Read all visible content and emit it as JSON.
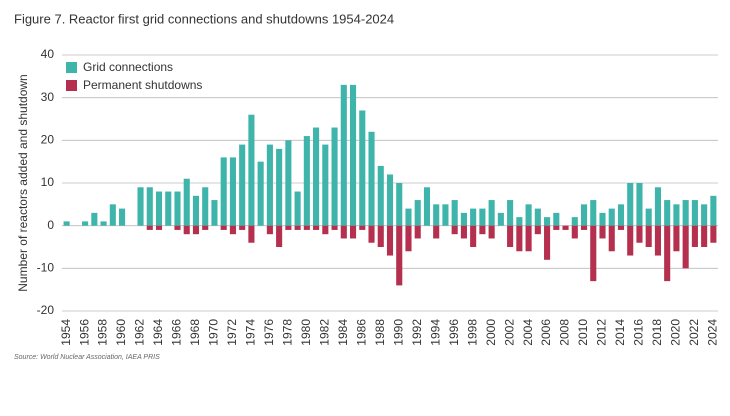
{
  "chart_data": {
    "type": "bar",
    "title": "Figure 7. Reactor first grid connections and shutdowns 1954-2024",
    "y_label": "Number of reactors added and shutdown",
    "source": "Source: World Nuclear Association, IAEA PRIS",
    "categories": [
      "1954",
      null,
      "1956",
      null,
      "1958",
      null,
      "1960",
      null,
      "1962",
      null,
      "1964",
      null,
      "1966",
      null,
      "1968",
      null,
      "1970",
      null,
      "1972",
      null,
      "1974",
      null,
      "1976",
      null,
      "1978",
      null,
      "1980",
      null,
      "1982",
      null,
      "1984",
      null,
      "1986",
      null,
      "1988",
      null,
      "1990",
      null,
      "1992",
      null,
      "1994",
      null,
      "1996",
      null,
      "1998",
      null,
      "2000",
      null,
      "2002",
      null,
      "2004",
      null,
      "2006",
      null,
      "2008",
      null,
      "2010",
      null,
      "2012",
      null,
      "2014",
      null,
      "2016",
      null,
      "2018",
      null,
      "2020",
      null,
      "2022",
      null,
      "2024"
    ],
    "series": [
      {
        "name": "Grid connections",
        "color": "#3fb4ab",
        "values": [
          1,
          0,
          1,
          3,
          1,
          5,
          4,
          0,
          9,
          9,
          8,
          8,
          8,
          11,
          7,
          9,
          6,
          16,
          16,
          19,
          26,
          15,
          19,
          18,
          20,
          8,
          21,
          23,
          19,
          23,
          33,
          33,
          27,
          22,
          14,
          12,
          10,
          4,
          6,
          9,
          5,
          5,
          6,
          3,
          4,
          4,
          6,
          3,
          6,
          2,
          5,
          4,
          2,
          3,
          0,
          2,
          5,
          6,
          3,
          4,
          5,
          10,
          10,
          4,
          9,
          6,
          5,
          6,
          6,
          5,
          7
        ]
      },
      {
        "name": "Permanent shutdowns",
        "color": "#b5304f",
        "values": [
          0,
          0,
          0,
          0,
          0,
          0,
          0,
          0,
          0,
          -1,
          -1,
          0,
          -1,
          -2,
          -2,
          -1,
          0,
          -1,
          -2,
          -1,
          -4,
          0,
          -2,
          -5,
          -1,
          -1,
          -1,
          -1,
          -2,
          -1,
          -3,
          -3,
          -1,
          -4,
          -5,
          -7,
          -14,
          -6,
          -3,
          0,
          -3,
          0,
          -2,
          -3,
          -5,
          -2,
          -3,
          0,
          -5,
          -6,
          -6,
          -2,
          -8,
          -1,
          -1,
          -3,
          -1,
          -13,
          -3,
          -6,
          -1,
          -7,
          -4,
          -5,
          -7,
          -13,
          -6,
          -10,
          -5,
          -5,
          -4
        ]
      }
    ],
    "ylim": [
      -20,
      40
    ],
    "yticks": [
      -20,
      -10,
      0,
      10,
      20,
      30,
      40
    ],
    "grid": true,
    "legend": "top-left"
  }
}
